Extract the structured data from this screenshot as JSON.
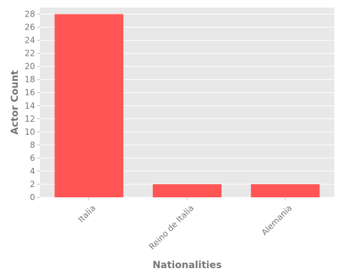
{
  "chart_data": {
    "type": "bar",
    "categories": [
      "Italia",
      "Reino de Italia",
      "Alemania"
    ],
    "values": [
      28,
      2,
      2
    ],
    "xlabel": "Nationalities",
    "ylabel": "Actor Count",
    "ylim": [
      0,
      29
    ],
    "yticks": [
      0,
      2,
      4,
      6,
      8,
      10,
      12,
      14,
      16,
      18,
      20,
      22,
      24,
      26,
      28
    ],
    "grid": true,
    "colors": {
      "bar": "#ff5555",
      "background": "#e8e8e8",
      "grid": "#ffffff",
      "text": "#777777"
    }
  }
}
